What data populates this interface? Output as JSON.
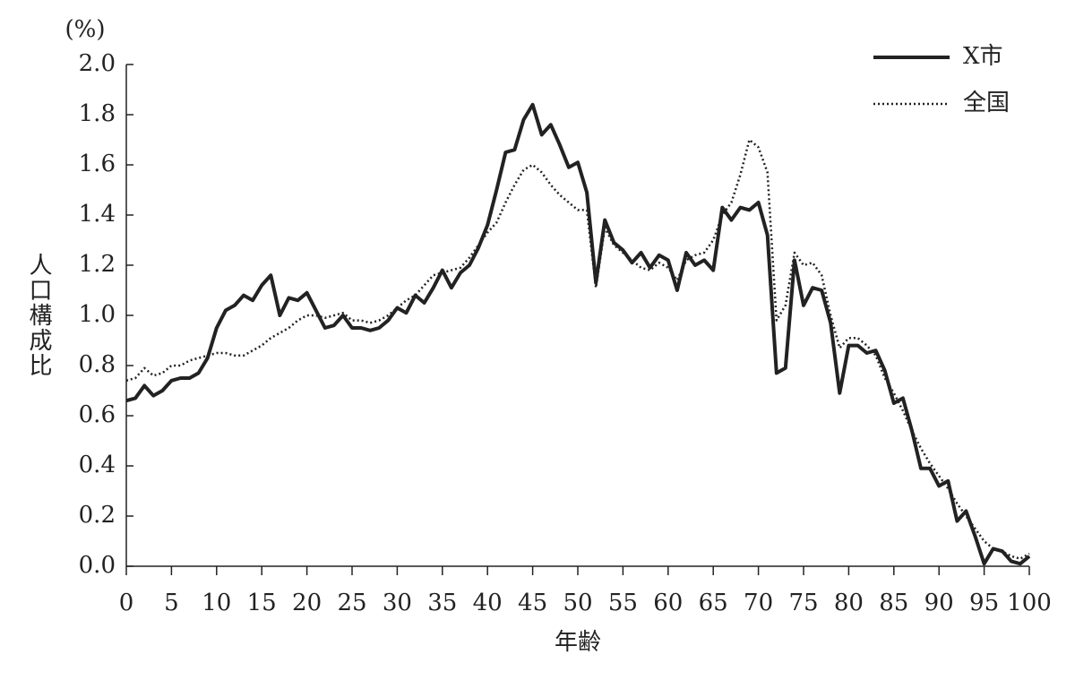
{
  "chart_data": {
    "type": "line",
    "y_unit": "(%)",
    "ylabel": "人口構成比",
    "xlabel": "年齢",
    "legend": "top-right",
    "x": [
      0,
      1,
      2,
      3,
      4,
      5,
      6,
      7,
      8,
      9,
      10,
      11,
      12,
      13,
      14,
      15,
      16,
      17,
      18,
      19,
      20,
      21,
      22,
      23,
      24,
      25,
      26,
      27,
      28,
      29,
      30,
      31,
      32,
      33,
      34,
      35,
      36,
      37,
      38,
      39,
      40,
      41,
      42,
      43,
      44,
      45,
      46,
      47,
      48,
      49,
      50,
      51,
      52,
      53,
      54,
      55,
      56,
      57,
      58,
      59,
      60,
      61,
      62,
      63,
      64,
      65,
      66,
      67,
      68,
      69,
      70,
      71,
      72,
      73,
      74,
      75,
      76,
      77,
      78,
      79,
      80,
      81,
      82,
      83,
      84,
      85,
      86,
      87,
      88,
      89,
      90,
      91,
      92,
      93,
      94,
      95,
      96,
      97,
      98,
      99,
      100
    ],
    "series": [
      {
        "name": "X市",
        "color": "#222222",
        "style": "solid",
        "values": [
          0.66,
          0.67,
          0.72,
          0.68,
          0.7,
          0.74,
          0.75,
          0.75,
          0.77,
          0.83,
          0.95,
          1.02,
          1.04,
          1.08,
          1.06,
          1.12,
          1.16,
          1.0,
          1.07,
          1.06,
          1.09,
          1.02,
          0.95,
          0.96,
          1.0,
          0.95,
          0.95,
          0.94,
          0.95,
          0.98,
          1.03,
          1.01,
          1.08,
          1.05,
          1.11,
          1.18,
          1.11,
          1.17,
          1.2,
          1.27,
          1.36,
          1.5,
          1.65,
          1.66,
          1.78,
          1.84,
          1.72,
          1.76,
          1.68,
          1.59,
          1.61,
          1.49,
          1.13,
          1.38,
          1.29,
          1.26,
          1.21,
          1.25,
          1.19,
          1.24,
          1.22,
          1.1,
          1.25,
          1.2,
          1.22,
          1.18,
          1.43,
          1.38,
          1.43,
          1.42,
          1.45,
          1.32,
          0.77,
          0.79,
          1.22,
          1.04,
          1.11,
          1.1,
          0.97,
          0.69,
          0.88,
          0.88,
          0.85,
          0.86,
          0.78,
          0.65,
          0.67,
          0.54,
          0.39,
          0.39,
          0.32,
          0.34,
          0.18,
          0.22,
          0.12,
          0.01,
          0.07,
          0.06,
          0.02,
          0.01,
          0.04
        ]
      },
      {
        "name": "全国",
        "color": "#222222",
        "style": "dotted",
        "values": [
          0.74,
          0.75,
          0.79,
          0.76,
          0.77,
          0.8,
          0.8,
          0.82,
          0.83,
          0.84,
          0.85,
          0.85,
          0.84,
          0.84,
          0.86,
          0.88,
          0.91,
          0.93,
          0.95,
          0.98,
          1.0,
          1.0,
          0.99,
          1.0,
          1.01,
          0.98,
          0.98,
          0.97,
          0.98,
          1.0,
          1.03,
          1.06,
          1.08,
          1.12,
          1.16,
          1.17,
          1.18,
          1.19,
          1.23,
          1.28,
          1.33,
          1.37,
          1.45,
          1.52,
          1.58,
          1.6,
          1.57,
          1.52,
          1.48,
          1.45,
          1.42,
          1.42,
          1.11,
          1.35,
          1.28,
          1.25,
          1.22,
          1.19,
          1.18,
          1.21,
          1.19,
          1.14,
          1.22,
          1.24,
          1.25,
          1.3,
          1.4,
          1.45,
          1.56,
          1.7,
          1.67,
          1.57,
          0.98,
          1.04,
          1.25,
          1.2,
          1.21,
          1.16,
          1.0,
          0.87,
          0.91,
          0.91,
          0.88,
          0.84,
          0.75,
          0.69,
          0.62,
          0.54,
          0.47,
          0.41,
          0.36,
          0.31,
          0.25,
          0.2,
          0.15,
          0.1,
          0.07,
          0.06,
          0.04,
          0.03,
          0.05
        ]
      }
    ],
    "xlim": [
      0,
      100
    ],
    "xticks": [
      0,
      5,
      10,
      15,
      20,
      25,
      30,
      35,
      40,
      45,
      50,
      55,
      60,
      65,
      70,
      75,
      80,
      85,
      90,
      95,
      100
    ],
    "ylim": [
      0,
      2
    ],
    "yticks": [
      {
        "value": 0,
        "label": "0.0"
      },
      {
        "value": 0.2,
        "label": "0.2"
      },
      {
        "value": 0.4,
        "label": "0.4"
      },
      {
        "value": 0.6,
        "label": "0.6"
      },
      {
        "value": 0.8,
        "label": "0.8"
      },
      {
        "value": 1,
        "label": "1.0"
      },
      {
        "value": 1.2,
        "label": "1.2"
      },
      {
        "value": 1.4,
        "label": "1.4"
      },
      {
        "value": 1.6,
        "label": "1.6"
      },
      {
        "value": 1.8,
        "label": "1.8"
      },
      {
        "value": 2,
        "label": "2.0"
      }
    ]
  }
}
